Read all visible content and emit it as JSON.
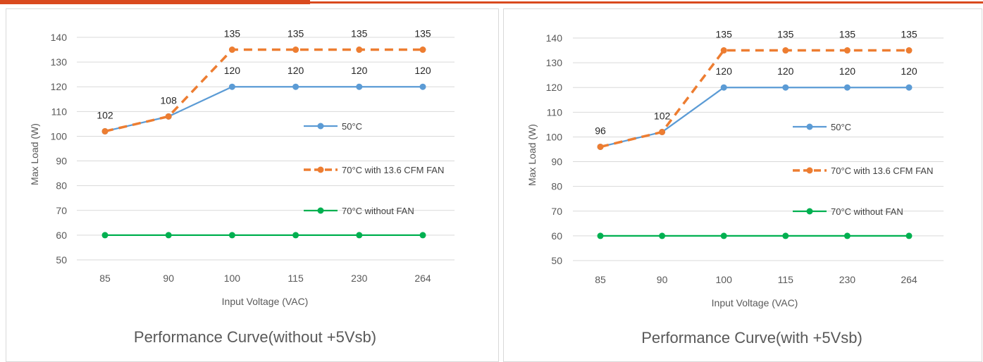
{
  "colors": {
    "accent_bar": "#d94a1e",
    "series_50C": "#5b9bd5",
    "series_70C_fan": "#ed7d31",
    "series_70C_nofan": "#00b050",
    "grid": "#d9d9d9",
    "text": "#595959"
  },
  "chart_data": [
    {
      "type": "line",
      "title": "Performance Curve(without +5Vsb)",
      "xlabel": "Input Voltage (VAC)",
      "ylabel": "Max Load (W)",
      "categories": [
        "85",
        "90",
        "100",
        "115",
        "230",
        "264"
      ],
      "ylim": [
        50,
        140
      ],
      "yticks": [
        50,
        60,
        70,
        80,
        90,
        100,
        110,
        120,
        130,
        140
      ],
      "grid": true,
      "legend_position": "right",
      "series": [
        {
          "name": "50°C",
          "values": [
            102,
            108,
            120,
            120,
            120,
            120
          ],
          "style": "solid",
          "color": "#5b9bd5",
          "labels": [
            null,
            null,
            "120",
            "120",
            "120",
            "120"
          ]
        },
        {
          "name": "70°C with 13.6 CFM FAN",
          "values": [
            102,
            108,
            135,
            135,
            135,
            135
          ],
          "style": "dashed",
          "color": "#ed7d31",
          "labels": [
            "102",
            "108",
            "135",
            "135",
            "135",
            "135"
          ]
        },
        {
          "name": "70°C without FAN",
          "values": [
            60,
            60,
            60,
            60,
            60,
            60
          ],
          "style": "solid",
          "color": "#00b050",
          "labels": [
            null,
            null,
            null,
            null,
            null,
            null
          ]
        }
      ]
    },
    {
      "type": "line",
      "title": "Performance Curve(with +5Vsb)",
      "xlabel": "Input Voltage (VAC)",
      "ylabel": "Max Load (W)",
      "categories": [
        "85",
        "90",
        "100",
        "115",
        "230",
        "264"
      ],
      "ylim": [
        50,
        140
      ],
      "yticks": [
        50,
        60,
        70,
        80,
        90,
        100,
        110,
        120,
        130,
        140
      ],
      "grid": true,
      "legend_position": "right",
      "series": [
        {
          "name": "50°C",
          "values": [
            96,
            102,
            120,
            120,
            120,
            120
          ],
          "style": "solid",
          "color": "#5b9bd5",
          "labels": [
            null,
            null,
            "120",
            "120",
            "120",
            "120"
          ]
        },
        {
          "name": "70°C with 13.6 CFM FAN",
          "values": [
            96,
            102,
            135,
            135,
            135,
            135
          ],
          "style": "dashed",
          "color": "#ed7d31",
          "labels": [
            "96",
            "102",
            "135",
            "135",
            "135",
            "135"
          ]
        },
        {
          "name": "70°C without FAN",
          "values": [
            60,
            60,
            60,
            60,
            60,
            60
          ],
          "style": "solid",
          "color": "#00b050",
          "labels": [
            null,
            null,
            null,
            null,
            null,
            null
          ]
        }
      ]
    }
  ]
}
